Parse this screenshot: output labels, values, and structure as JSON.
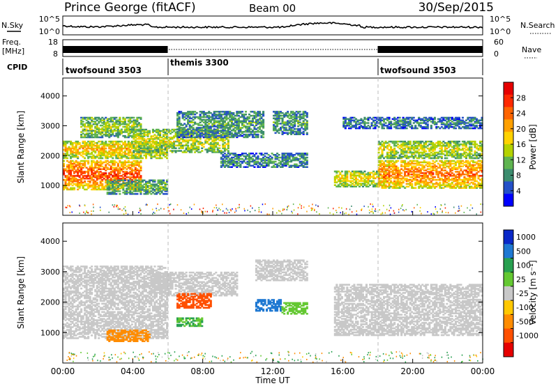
{
  "header": {
    "station": "Prince George (fitACF)",
    "beam": "Beam 00",
    "date": "30/Sep/2015"
  },
  "top_panel": {
    "nsky_label": "N.Sky",
    "nsearch_label": "N.Search",
    "noise_ticks": [
      "10^5",
      "10^0"
    ],
    "freq_label_1": "Freq.",
    "freq_label_2": "[MHz]",
    "freq_ticks": [
      "18",
      "8"
    ],
    "nave_label": "Nave",
    "nave_ticks": [
      "60",
      "0"
    ],
    "cpid_label": "CPID",
    "cpid_segments": [
      {
        "name": "twofsound 3503",
        "start_hour": 0,
        "end_hour": 6
      },
      {
        "name": "themis 3300",
        "start_hour": 6,
        "end_hour": 18
      },
      {
        "name": "twofsound 3503",
        "start_hour": 18,
        "end_hour": 24
      }
    ]
  },
  "chart_data": [
    {
      "type": "heatmap",
      "panel": "power",
      "ylabel": "Slant Range [km]",
      "ylim": [
        0,
        4600
      ],
      "yticks": [
        "1000",
        "2000",
        "3000",
        "4000"
      ],
      "xlim_hours": [
        0,
        24
      ],
      "colorbar_label": "Power [dB]",
      "colorbar_ticks": [
        "4",
        "8",
        "12",
        "16",
        "20",
        "24",
        "28"
      ],
      "colors": [
        "#0000ff",
        "#2450c8",
        "#3c8c6e",
        "#5fb450",
        "#b4d200",
        "#ffd200",
        "#ffa000",
        "#ff6400",
        "#ff2800",
        "#e60000"
      ],
      "range": [
        0,
        32
      ],
      "echo_regions": [
        {
          "t0": 0.0,
          "t1": 4.5,
          "r0": 850,
          "r1": 1850,
          "level": 26
        },
        {
          "t0": 0.0,
          "t1": 6.0,
          "r0": 1900,
          "r1": 2500,
          "level": 20
        },
        {
          "t0": 1.0,
          "t1": 4.5,
          "r0": 2600,
          "r1": 3300,
          "level": 14
        },
        {
          "t0": 2.5,
          "t1": 6.0,
          "r0": 700,
          "r1": 1200,
          "level": 12
        },
        {
          "t0": 4.0,
          "t1": 9.5,
          "r0": 2100,
          "r1": 2900,
          "level": 16
        },
        {
          "t0": 6.5,
          "t1": 11.5,
          "r0": 2600,
          "r1": 3500,
          "level": 10
        },
        {
          "t0": 9.0,
          "t1": 14.0,
          "r0": 1600,
          "r1": 2100,
          "level": 9
        },
        {
          "t0": 12.0,
          "t1": 14.0,
          "r0": 2700,
          "r1": 3500,
          "level": 10
        },
        {
          "t0": 15.5,
          "t1": 18.5,
          "r0": 950,
          "r1": 1500,
          "level": 18
        },
        {
          "t0": 18.0,
          "t1": 24.0,
          "r0": 900,
          "r1": 1850,
          "level": 24
        },
        {
          "t0": 18.0,
          "t1": 24.0,
          "r0": 1900,
          "r1": 2500,
          "level": 16
        },
        {
          "t0": 16.0,
          "t1": 24.0,
          "r0": 2900,
          "r1": 3300,
          "level": 8
        }
      ]
    },
    {
      "type": "heatmap",
      "panel": "velocity",
      "ylabel": "Slant Range [km]",
      "ylim": [
        0,
        4600
      ],
      "yticks": [
        "1000",
        "2000",
        "3000",
        "4000"
      ],
      "xlim_hours": [
        0,
        24
      ],
      "xticks": [
        "00:00",
        "04:00",
        "08:00",
        "12:00",
        "16:00",
        "20:00",
        "00:00"
      ],
      "xlabel": "Time UT",
      "colorbar_label": "Velocity [m s⁻¹]",
      "colorbar_ticks": [
        "1000",
        "500",
        "100",
        "25",
        "-25",
        "-100",
        "-500",
        "-1000"
      ],
      "colors": [
        "#0a28c8",
        "#1e78d2",
        "#28a050",
        "#64c832",
        "#c8c8c8",
        "#ffc800",
        "#ff8c00",
        "#ff5000",
        "#e60000"
      ],
      "ground_scatter_color": "#c8c8c8",
      "echo_regions": [
        {
          "t0": 0.0,
          "t1": 6.0,
          "r0": 800,
          "r1": 3200,
          "v": 0
        },
        {
          "t0": 5.0,
          "t1": 10.0,
          "r0": 2200,
          "r1": 3000,
          "v": 0
        },
        {
          "t0": 6.5,
          "t1": 8.5,
          "r0": 1800,
          "r1": 2300,
          "v": -700
        },
        {
          "t0": 6.5,
          "t1": 8.0,
          "r0": 1200,
          "r1": 1500,
          "v": 100
        },
        {
          "t0": 11.0,
          "t1": 12.5,
          "r0": 1700,
          "r1": 2100,
          "v": 800
        },
        {
          "t0": 12.5,
          "t1": 14.0,
          "r0": 1600,
          "r1": 2000,
          "v": 60
        },
        {
          "t0": 2.5,
          "t1": 5.0,
          "r0": 700,
          "r1": 1100,
          "v": -150
        },
        {
          "t0": 15.5,
          "t1": 24.0,
          "r0": 900,
          "r1": 2600,
          "v": 0
        },
        {
          "t0": 11.0,
          "t1": 14.0,
          "r0": 2700,
          "r1": 3400,
          "v": 0
        }
      ]
    }
  ]
}
